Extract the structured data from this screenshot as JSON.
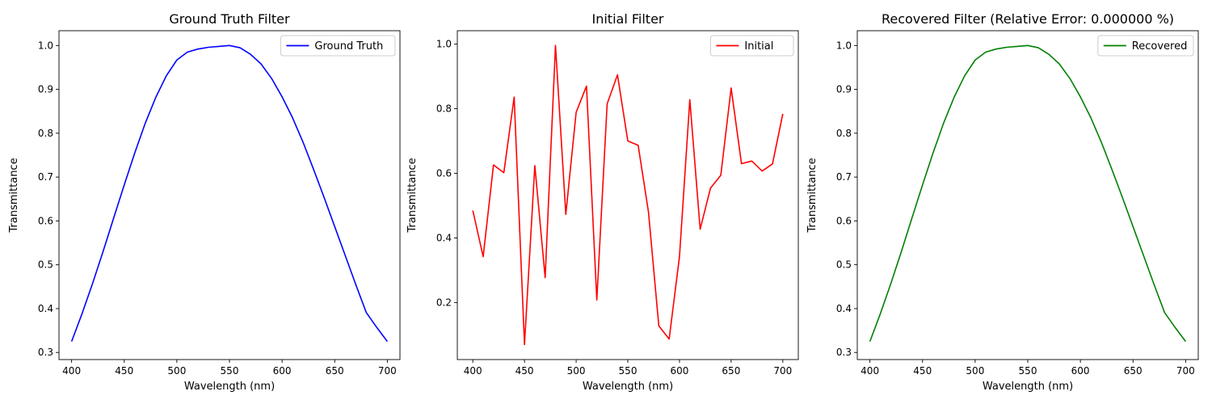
{
  "chart_data": [
    {
      "type": "line",
      "title": "Ground Truth Filter",
      "xlabel": "Wavelength (nm)",
      "ylabel": "Transmittance",
      "xlim": [
        388,
        712
      ],
      "ylim": [
        0.2838,
        1.0338
      ],
      "xticks": [
        400,
        450,
        500,
        550,
        600,
        650,
        700
      ],
      "yticks": [
        0.3,
        0.4,
        0.5,
        0.6,
        0.7,
        0.8,
        0.9,
        1.0
      ],
      "ytick_labels": [
        "0.3",
        "0.4",
        "0.5",
        "0.6",
        "0.7",
        "0.8",
        "0.9",
        "1.0"
      ],
      "legend_position": "upper-right",
      "grid": false,
      "series": [
        {
          "name": "Ground Truth",
          "color": "#0000ff",
          "x": [
            400,
            410,
            420,
            430,
            440,
            450,
            460,
            470,
            480,
            490,
            500,
            510,
            520,
            530,
            540,
            550,
            560,
            570,
            580,
            590,
            600,
            610,
            620,
            630,
            640,
            650,
            660,
            670,
            680,
            690,
            700
          ],
          "y": [
            0.325,
            0.389,
            0.458,
            0.531,
            0.607,
            0.682,
            0.755,
            0.823,
            0.882,
            0.931,
            0.967,
            0.985,
            0.992,
            0.996,
            0.998,
            1.0,
            0.995,
            0.98,
            0.958,
            0.925,
            0.883,
            0.835,
            0.779,
            0.717,
            0.653,
            0.587,
            0.521,
            0.455,
            0.391,
            0.357,
            0.325
          ]
        }
      ]
    },
    {
      "type": "line",
      "title": "Initial Filter",
      "xlabel": "Wavelength (nm)",
      "ylabel": "Transmittance",
      "xlim": [
        385,
        715
      ],
      "ylim": [
        0.0235,
        1.0415
      ],
      "xticks": [
        400,
        450,
        500,
        550,
        600,
        650,
        700
      ],
      "yticks": [
        0.2,
        0.4,
        0.6,
        0.8,
        1.0
      ],
      "ytick_labels": [
        "0.2",
        "0.4",
        "0.6",
        "0.8",
        "1.0"
      ],
      "legend_position": "upper-right",
      "grid": false,
      "series": [
        {
          "name": "Initial",
          "color": "#ff0000",
          "x": [
            400,
            410,
            420,
            430,
            440,
            450,
            460,
            470,
            480,
            490,
            500,
            510,
            520,
            530,
            540,
            550,
            560,
            570,
            580,
            590,
            600,
            610,
            620,
            630,
            640,
            650,
            660,
            670,
            680,
            690,
            700
          ],
          "y": [
            0.485,
            0.342,
            0.626,
            0.602,
            0.836,
            0.07,
            0.624,
            0.277,
            0.996,
            0.473,
            0.789,
            0.87,
            0.208,
            0.815,
            0.905,
            0.7,
            0.687,
            0.48,
            0.128,
            0.087,
            0.342,
            0.828,
            0.427,
            0.554,
            0.594,
            0.864,
            0.63,
            0.638,
            0.607,
            0.629,
            0.784
          ]
        }
      ]
    },
    {
      "type": "line",
      "title": "Recovered Filter (Relative Error: 0.000000 %)",
      "xlabel": "Wavelength (nm)",
      "ylabel": "Transmittance",
      "xlim": [
        388,
        712
      ],
      "ylim": [
        0.2838,
        1.0338
      ],
      "xticks": [
        400,
        450,
        500,
        550,
        600,
        650,
        700
      ],
      "yticks": [
        0.3,
        0.4,
        0.5,
        0.6,
        0.7,
        0.8,
        0.9,
        1.0
      ],
      "ytick_labels": [
        "0.3",
        "0.4",
        "0.5",
        "0.6",
        "0.7",
        "0.8",
        "0.9",
        "1.0"
      ],
      "legend_position": "upper-right",
      "grid": false,
      "series": [
        {
          "name": "Recovered",
          "color": "#008000",
          "x": [
            400,
            410,
            420,
            430,
            440,
            450,
            460,
            470,
            480,
            490,
            500,
            510,
            520,
            530,
            540,
            550,
            560,
            570,
            580,
            590,
            600,
            610,
            620,
            630,
            640,
            650,
            660,
            670,
            680,
            690,
            700
          ],
          "y": [
            0.325,
            0.389,
            0.458,
            0.531,
            0.607,
            0.682,
            0.755,
            0.823,
            0.882,
            0.931,
            0.967,
            0.985,
            0.992,
            0.996,
            0.998,
            1.0,
            0.995,
            0.98,
            0.958,
            0.925,
            0.883,
            0.835,
            0.779,
            0.717,
            0.653,
            0.587,
            0.521,
            0.455,
            0.391,
            0.357,
            0.325
          ]
        }
      ]
    }
  ]
}
